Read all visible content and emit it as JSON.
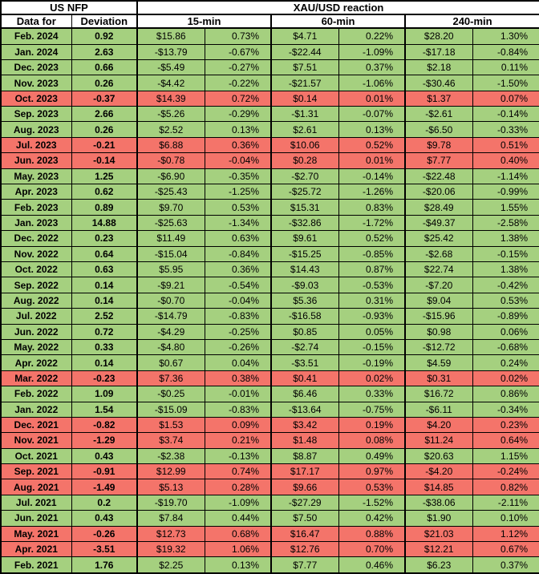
{
  "header": {
    "us_nfp": "US NFP",
    "reaction": "XAU/USD reaction",
    "data_for": "Data for",
    "deviation": "Deviation",
    "col_15": "15-min",
    "col_60": "60-min",
    "col_240": "240-min"
  },
  "colors": {
    "green": "#a5d07f",
    "red": "#f4746a"
  },
  "chart_data": {
    "type": "table",
    "title": "US NFP deviation vs XAU/USD reaction",
    "columns": [
      "Data for",
      "Deviation",
      "15-min USD",
      "15-min %",
      "60-min USD",
      "60-min %",
      "240-min USD",
      "240-min %"
    ],
    "rows": [
      {
        "tone": "green",
        "cells": [
          "Feb. 2024",
          "0.92",
          "$15.86",
          "0.73%",
          "$4.71",
          "0.22%",
          "$28.20",
          "1.30%"
        ]
      },
      {
        "tone": "green",
        "cells": [
          "Jan. 2024",
          "2.63",
          "-$13.79",
          "-0.67%",
          "-$22.44",
          "-1.09%",
          "-$17.18",
          "-0.84%"
        ]
      },
      {
        "tone": "green",
        "cells": [
          "Dec. 2023",
          "0.66",
          "-$5.49",
          "-0.27%",
          "$7.51",
          "0.37%",
          "$2.18",
          "0.11%"
        ]
      },
      {
        "tone": "green",
        "cells": [
          "Nov. 2023",
          "0.26",
          "-$4.42",
          "-0.22%",
          "-$21.57",
          "-1.06%",
          "-$30.46",
          "-1.50%"
        ]
      },
      {
        "tone": "red",
        "cells": [
          "Oct. 2023",
          "-0.37",
          "$14.39",
          "0.72%",
          "$0.14",
          "0.01%",
          "$1.37",
          "0.07%"
        ]
      },
      {
        "tone": "green",
        "cells": [
          "Sep. 2023",
          "2.66",
          "-$5.26",
          "-0.29%",
          "-$1.31",
          "-0.07%",
          "-$2.61",
          "-0.14%"
        ]
      },
      {
        "tone": "green",
        "cells": [
          "Aug. 2023",
          "0.26",
          "$2.52",
          "0.13%",
          "$2.61",
          "0.13%",
          "-$6.50",
          "-0.33%"
        ]
      },
      {
        "tone": "red",
        "cells": [
          "Jul. 2023",
          "-0.21",
          "$6.88",
          "0.36%",
          "$10.06",
          "0.52%",
          "$9.78",
          "0.51%"
        ]
      },
      {
        "tone": "red",
        "cells": [
          "Jun. 2023",
          "-0.14",
          "-$0.78",
          "-0.04%",
          "$0.28",
          "0.01%",
          "$7.77",
          "0.40%"
        ]
      },
      {
        "tone": "green",
        "cells": [
          "May. 2023",
          "1.25",
          "-$6.90",
          "-0.35%",
          "-$2.70",
          "-0.14%",
          "-$22.48",
          "-1.14%"
        ]
      },
      {
        "tone": "green",
        "cells": [
          "Apr. 2023",
          "0.62",
          "-$25.43",
          "-1.25%",
          "-$25.72",
          "-1.26%",
          "-$20.06",
          "-0.99%"
        ]
      },
      {
        "tone": "green",
        "cells": [
          "Feb. 2023",
          "0.89",
          "$9.70",
          "0.53%",
          "$15.31",
          "0.83%",
          "$28.49",
          "1.55%"
        ]
      },
      {
        "tone": "green",
        "cells": [
          "Jan. 2023",
          "14.88",
          "-$25.63",
          "-1.34%",
          "-$32.86",
          "-1.72%",
          "-$49.37",
          "-2.58%"
        ]
      },
      {
        "tone": "green",
        "cells": [
          "Dec. 2022",
          "0.23",
          "$11.49",
          "0.63%",
          "$9.61",
          "0.52%",
          "$25.42",
          "1.38%"
        ]
      },
      {
        "tone": "green",
        "cells": [
          "Nov. 2022",
          "0.64",
          "-$15.04",
          "-0.84%",
          "-$15.25",
          "-0.85%",
          "-$2.68",
          "-0.15%"
        ]
      },
      {
        "tone": "green",
        "cells": [
          "Oct. 2022",
          "0.63",
          "$5.95",
          "0.36%",
          "$14.43",
          "0.87%",
          "$22.74",
          "1.38%"
        ]
      },
      {
        "tone": "green",
        "cells": [
          "Sep. 2022",
          "0.14",
          "-$9.21",
          "-0.54%",
          "-$9.03",
          "-0.53%",
          "-$7.20",
          "-0.42%"
        ]
      },
      {
        "tone": "green",
        "cells": [
          "Aug. 2022",
          "0.14",
          "-$0.70",
          "-0.04%",
          "$5.36",
          "0.31%",
          "$9.04",
          "0.53%"
        ]
      },
      {
        "tone": "green",
        "cells": [
          "Jul. 2022",
          "2.52",
          "-$14.79",
          "-0.83%",
          "-$16.58",
          "-0.93%",
          "-$15.96",
          "-0.89%"
        ]
      },
      {
        "tone": "green",
        "cells": [
          "Jun. 2022",
          "0.72",
          "-$4.29",
          "-0.25%",
          "$0.85",
          "0.05%",
          "$0.98",
          "0.06%"
        ]
      },
      {
        "tone": "green",
        "cells": [
          "May. 2022",
          "0.33",
          "-$4.80",
          "-0.26%",
          "-$2.74",
          "-0.15%",
          "-$12.72",
          "-0.68%"
        ]
      },
      {
        "tone": "green",
        "cells": [
          "Apr. 2022",
          "0.14",
          "$0.67",
          "0.04%",
          "-$3.51",
          "-0.19%",
          "$4.59",
          "0.24%"
        ]
      },
      {
        "tone": "red",
        "cells": [
          "Mar. 2022",
          "-0.23",
          "$7.36",
          "0.38%",
          "$0.41",
          "0.02%",
          "$0.31",
          "0.02%"
        ]
      },
      {
        "tone": "green",
        "cells": [
          "Feb. 2022",
          "1.09",
          "-$0.25",
          "-0.01%",
          "$6.46",
          "0.33%",
          "$16.72",
          "0.86%"
        ]
      },
      {
        "tone": "green",
        "cells": [
          "Jan. 2022",
          "1.54",
          "-$15.09",
          "-0.83%",
          "-$13.64",
          "-0.75%",
          "-$6.11",
          "-0.34%"
        ]
      },
      {
        "tone": "red",
        "cells": [
          "Dec. 2021",
          "-0.82",
          "$1.53",
          "0.09%",
          "$3.42",
          "0.19%",
          "$4.20",
          "0.23%"
        ]
      },
      {
        "tone": "red",
        "cells": [
          "Nov. 2021",
          "-1.29",
          "$3.74",
          "0.21%",
          "$1.48",
          "0.08%",
          "$11.24",
          "0.64%"
        ]
      },
      {
        "tone": "green",
        "cells": [
          "Oct. 2021",
          "0.43",
          "-$2.38",
          "-0.13%",
          "$8.87",
          "0.49%",
          "$20.63",
          "1.15%"
        ]
      },
      {
        "tone": "red",
        "cells": [
          "Sep. 2021",
          "-0.91",
          "$12.99",
          "0.74%",
          "$17.17",
          "0.97%",
          "-$4.20",
          "-0.24%"
        ]
      },
      {
        "tone": "red",
        "cells": [
          "Aug. 2021",
          "-1.49",
          "$5.13",
          "0.28%",
          "$9.66",
          "0.53%",
          "$14.85",
          "0.82%"
        ]
      },
      {
        "tone": "green",
        "cells": [
          "Jul. 2021",
          "0.2",
          "-$19.70",
          "-1.09%",
          "-$27.29",
          "-1.52%",
          "-$38.06",
          "-2.11%"
        ]
      },
      {
        "tone": "green",
        "cells": [
          "Jun. 2021",
          "0.43",
          "$7.84",
          "0.44%",
          "$7.50",
          "0.42%",
          "$1.90",
          "0.10%"
        ]
      },
      {
        "tone": "red",
        "cells": [
          "May. 2021",
          "-0.26",
          "$12.73",
          "0.68%",
          "$16.47",
          "0.88%",
          "$21.03",
          "1.12%"
        ]
      },
      {
        "tone": "red",
        "cells": [
          "Apr. 2021",
          "-3.51",
          "$19.32",
          "1.06%",
          "$12.76",
          "0.70%",
          "$12.21",
          "0.67%"
        ]
      },
      {
        "tone": "green",
        "cells": [
          "Feb. 2021",
          "1.76",
          "$2.25",
          "0.13%",
          "$7.77",
          "0.46%",
          "$6.23",
          "0.37%"
        ]
      }
    ]
  }
}
